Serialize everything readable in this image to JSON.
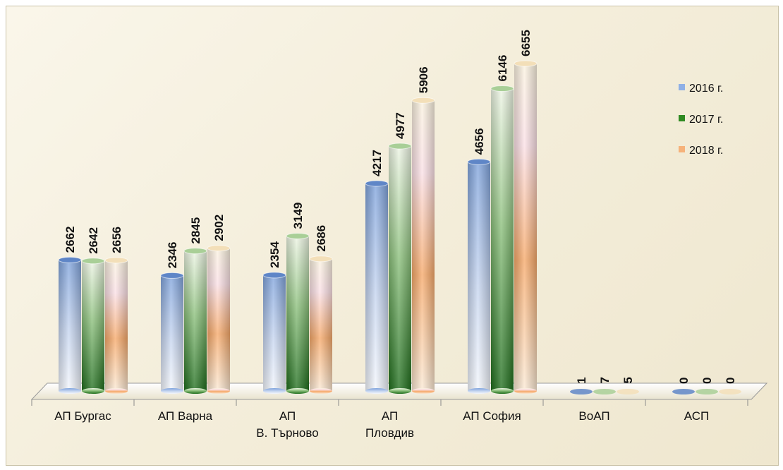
{
  "chart_data": {
    "type": "bar",
    "style": "3d-cylinder",
    "categories": [
      [
        "АП Бургас"
      ],
      [
        "АП Варна"
      ],
      [
        "АП",
        "В. Търново"
      ],
      [
        "АП",
        "Пловдив"
      ],
      [
        "АП София"
      ],
      [
        "ВоАП"
      ],
      [
        "АСП"
      ]
    ],
    "series": [
      {
        "name": "2016 г.",
        "values": [
          2662,
          2346,
          2354,
          4217,
          4656,
          1,
          0
        ],
        "color": "#5b84c9"
      },
      {
        "name": "2017 г.",
        "values": [
          2642,
          2845,
          3149,
          4977,
          6146,
          7,
          0
        ],
        "color": "#3f8f2e"
      },
      {
        "name": "2018 г.",
        "values": [
          2656,
          2902,
          2686,
          5906,
          6655,
          5,
          0
        ],
        "color": "#f0a25a"
      }
    ],
    "ylim": [
      0,
      7000
    ],
    "grid": false,
    "legend": "right"
  }
}
